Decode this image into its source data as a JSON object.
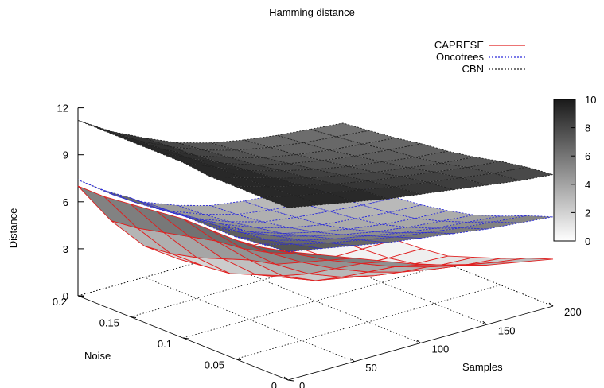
{
  "chart_data": {
    "type": "surface3d",
    "title": "Hamming distance",
    "xlabel": "Samples",
    "ylabel": "Noise",
    "zlabel": "Distance",
    "x": [
      0,
      25,
      50,
      75,
      100,
      125,
      150,
      175,
      200
    ],
    "y": [
      0,
      0.025,
      0.05,
      0.075,
      0.1,
      0.125,
      0.15,
      0.175,
      0.2
    ],
    "zlim": [
      0,
      12
    ],
    "x_ticks": [
      "0",
      "50",
      "100",
      "150",
      "200"
    ],
    "y_ticks": [
      "0",
      "0.05",
      "0.1",
      "0.15",
      "0.2"
    ],
    "z_ticks": [
      "0",
      "3",
      "6",
      "9",
      "12"
    ],
    "legend_position": "top-right",
    "colorbar": {
      "min": 0,
      "max": 10,
      "ticks": [
        "0",
        "2",
        "4",
        "6",
        "8",
        "10"
      ]
    },
    "colors": {
      "CAPRESE": "#e02020",
      "Oncotrees": "#2b2bd9",
      "CBN": "#222222"
    },
    "series": [
      {
        "name": "CAPRESE",
        "z": [
          [
            8.2,
            7.4,
            6.6,
            5.8,
            5.0,
            4.4,
            3.8,
            3.4,
            3.0
          ],
          [
            7.8,
            6.8,
            5.8,
            5.0,
            4.2,
            3.6,
            3.1,
            2.7,
            2.4
          ],
          [
            7.6,
            6.2,
            5.0,
            4.0,
            3.2,
            2.6,
            2.2,
            1.9,
            1.7
          ],
          [
            7.6,
            5.8,
            4.2,
            3.0,
            2.2,
            1.7,
            1.4,
            1.2,
            1.1
          ],
          [
            7.6,
            5.6,
            3.8,
            2.2,
            1.3,
            0.9,
            0.7,
            0.6,
            0.5
          ],
          [
            7.4,
            5.2,
            3.2,
            1.6,
            0.8,
            0.5,
            0.4,
            0.3,
            0.3
          ],
          [
            7.2,
            4.8,
            2.6,
            1.0,
            0.5,
            0.3,
            0.2,
            0.2,
            0.2
          ],
          [
            7.0,
            4.4,
            2.2,
            0.8,
            0.3,
            0.2,
            0.1,
            0.1,
            0.1
          ],
          [
            7.0,
            4.2,
            2.0,
            0.6,
            0.2,
            0.1,
            0.1,
            0.1,
            0.1
          ]
        ]
      },
      {
        "name": "Oncotrees",
        "z": [
          [
            8.2,
            7.8,
            7.4,
            7.0,
            6.7,
            6.4,
            6.1,
            5.9,
            5.7
          ],
          [
            8.0,
            7.4,
            6.9,
            6.5,
            6.1,
            5.8,
            5.5,
            5.3,
            5.1
          ],
          [
            7.8,
            7.0,
            6.4,
            5.9,
            5.5,
            5.1,
            4.8,
            4.6,
            4.4
          ],
          [
            7.8,
            6.8,
            6.0,
            5.4,
            4.9,
            4.5,
            4.2,
            4.0,
            3.8
          ],
          [
            7.8,
            6.6,
            5.6,
            4.9,
            4.4,
            4.0,
            3.7,
            3.5,
            3.4
          ],
          [
            7.6,
            6.4,
            5.4,
            4.6,
            4.0,
            3.6,
            3.4,
            3.2,
            3.1
          ],
          [
            7.6,
            6.2,
            5.1,
            4.3,
            3.7,
            3.4,
            3.2,
            3.0,
            2.9
          ],
          [
            7.4,
            6.0,
            4.9,
            4.1,
            3.5,
            3.2,
            3.0,
            2.9,
            2.8
          ],
          [
            7.4,
            5.9,
            4.8,
            4.0,
            3.4,
            3.1,
            2.9,
            2.8,
            2.7
          ]
        ]
      },
      {
        "name": "CBN",
        "z": [
          [
            11.0,
            10.6,
            10.2,
            9.8,
            9.5,
            9.2,
            8.9,
            8.6,
            8.4
          ],
          [
            11.0,
            10.5,
            10.1,
            9.7,
            9.3,
            9.0,
            8.7,
            8.4,
            8.2
          ],
          [
            11.0,
            10.4,
            9.9,
            9.4,
            9.0,
            8.7,
            8.4,
            8.1,
            7.9
          ],
          [
            11.0,
            10.3,
            9.7,
            9.1,
            8.7,
            8.3,
            8.0,
            7.7,
            7.5
          ],
          [
            11.2,
            10.3,
            9.5,
            8.9,
            8.4,
            8.0,
            7.7,
            7.4,
            7.2
          ],
          [
            11.2,
            10.2,
            9.3,
            8.6,
            8.1,
            7.7,
            7.4,
            7.2,
            7.0
          ],
          [
            11.2,
            10.1,
            9.1,
            8.4,
            7.8,
            7.4,
            7.1,
            6.9,
            6.7
          ],
          [
            11.2,
            10.0,
            9.0,
            8.2,
            7.6,
            7.2,
            6.9,
            6.7,
            6.5
          ],
          [
            11.2,
            9.9,
            8.9,
            8.0,
            7.4,
            7.0,
            6.7,
            6.5,
            6.3
          ]
        ]
      }
    ]
  }
}
